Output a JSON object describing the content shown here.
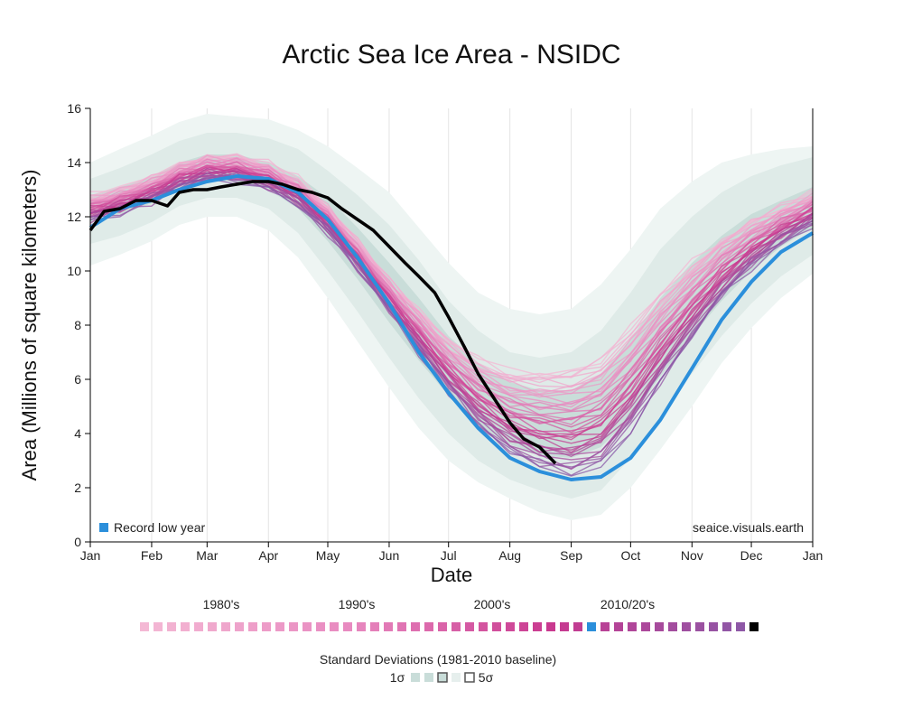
{
  "chart_data": {
    "type": "line",
    "title": "Arctic Sea Ice Area - NSIDC",
    "xlabel": "Date",
    "ylabel": "Area (Millions of square kilometers)",
    "x_ticks": [
      "Jan",
      "Feb",
      "Mar",
      "Apr",
      "May",
      "Jun",
      "Jul",
      "Aug",
      "Sep",
      "Oct",
      "Nov",
      "Dec",
      "Jan"
    ],
    "ylim": [
      0,
      16
    ],
    "y_ticks": [
      0,
      2,
      4,
      6,
      8,
      10,
      12,
      14,
      16
    ],
    "grid": "vertical",
    "x_days": [
      1,
      16,
      32,
      46,
      60,
      75,
      91,
      106,
      121,
      136,
      152,
      167,
      182,
      197,
      213,
      228,
      244,
      259,
      274,
      289,
      305,
      320,
      335,
      350,
      366
    ],
    "climatology": {
      "mean": [
        12.3,
        12.6,
        13.0,
        13.5,
        13.8,
        13.8,
        13.5,
        12.9,
        11.9,
        10.6,
        9.1,
        7.8,
        6.5,
        5.5,
        4.8,
        4.5,
        4.4,
        4.8,
        6.0,
        7.5,
        8.9,
        10.1,
        11.0,
        11.7,
        12.3
      ],
      "sd1_low": [
        11.8,
        12.1,
        12.5,
        13.0,
        13.3,
        13.3,
        13.0,
        12.3,
        11.1,
        9.7,
        8.1,
        6.7,
        5.4,
        4.3,
        3.6,
        3.2,
        3.1,
        3.5,
        4.6,
        6.1,
        7.6,
        8.9,
        10.0,
        10.9,
        11.6
      ],
      "sd1_high": [
        12.8,
        13.1,
        13.5,
        14.0,
        14.3,
        14.3,
        14.0,
        13.5,
        12.7,
        11.6,
        10.3,
        9.0,
        7.6,
        6.6,
        5.9,
        5.6,
        5.6,
        6.2,
        7.5,
        9.0,
        10.3,
        11.3,
        12.1,
        12.6,
        13.1
      ],
      "sd2_low": [
        11.0,
        11.3,
        11.8,
        12.4,
        12.7,
        12.7,
        12.3,
        11.4,
        10.0,
        8.5,
        6.8,
        5.3,
        4.0,
        3.0,
        2.3,
        1.9,
        1.6,
        1.9,
        3.1,
        4.6,
        6.2,
        7.6,
        8.8,
        9.8,
        10.6
      ],
      "sd2_high": [
        13.4,
        13.8,
        14.3,
        14.8,
        15.1,
        15.1,
        14.9,
        14.5,
        13.7,
        12.8,
        11.7,
        10.4,
        8.9,
        7.8,
        7.0,
        6.8,
        7.0,
        7.8,
        9.2,
        10.8,
        12.0,
        12.9,
        13.5,
        13.9,
        14.2
      ],
      "sd5_low": [
        10.2,
        10.6,
        11.1,
        11.7,
        12.0,
        12.0,
        11.5,
        10.5,
        9.0,
        7.4,
        5.7,
        4.2,
        3.0,
        2.2,
        1.6,
        1.1,
        0.8,
        1.0,
        2.0,
        3.4,
        5.0,
        6.6,
        7.9,
        9.0,
        9.9
      ],
      "sd5_high": [
        14.0,
        14.5,
        15.0,
        15.5,
        15.8,
        15.7,
        15.6,
        15.2,
        14.6,
        13.8,
        12.9,
        11.6,
        10.3,
        9.2,
        8.6,
        8.4,
        8.6,
        9.5,
        10.8,
        12.3,
        13.3,
        14.0,
        14.3,
        14.5,
        14.6
      ]
    },
    "record_low_year": {
      "name": "Record low year",
      "values": [
        11.6,
        12.3,
        12.6,
        13.0,
        13.3,
        13.5,
        13.4,
        12.9,
        11.9,
        10.5,
        8.8,
        7.0,
        5.5,
        4.2,
        3.1,
        2.6,
        2.3,
        2.4,
        3.1,
        4.5,
        6.4,
        8.2,
        9.6,
        10.7,
        11.4
      ]
    },
    "current_year": {
      "x_days": [
        1,
        8,
        16,
        24,
        32,
        40,
        46,
        53,
        60,
        67,
        75,
        83,
        91,
        98,
        106,
        113,
        121,
        128,
        136,
        144,
        152,
        160,
        167,
        175,
        182,
        190,
        197,
        205,
        213,
        220,
        228,
        236
      ],
      "values": [
        11.5,
        12.2,
        12.3,
        12.6,
        12.6,
        12.4,
        12.9,
        13.0,
        13.0,
        13.1,
        13.2,
        13.3,
        13.3,
        13.2,
        13.0,
        12.9,
        12.7,
        12.3,
        11.9,
        11.5,
        10.9,
        10.3,
        9.8,
        9.2,
        8.3,
        7.2,
        6.2,
        5.3,
        4.4,
        3.8,
        3.5,
        2.9
      ]
    }
  },
  "legend": {
    "record_label": "Record low year",
    "record_color": "#2b8fdb",
    "source_text": "seaice.visuals.earth"
  },
  "decades": [
    "1980's",
    "1990's",
    "2000's",
    "2010/20's"
  ],
  "colors": {
    "current_year": "#000000",
    "band_1sd": "#c9ddd9",
    "band_2sd": "#dfebe8",
    "band_5sd": "#eef5f3",
    "decade_1980s": "#f4b8d4",
    "decade_1990s": "#e88ac0",
    "decade_2000s": "#c9398f",
    "decade_2010s": "#8a5aa8"
  },
  "sd_legend": {
    "title": "Standard Deviations (1981-2010 baseline)",
    "low_label": "1σ",
    "high_label": "5σ"
  }
}
